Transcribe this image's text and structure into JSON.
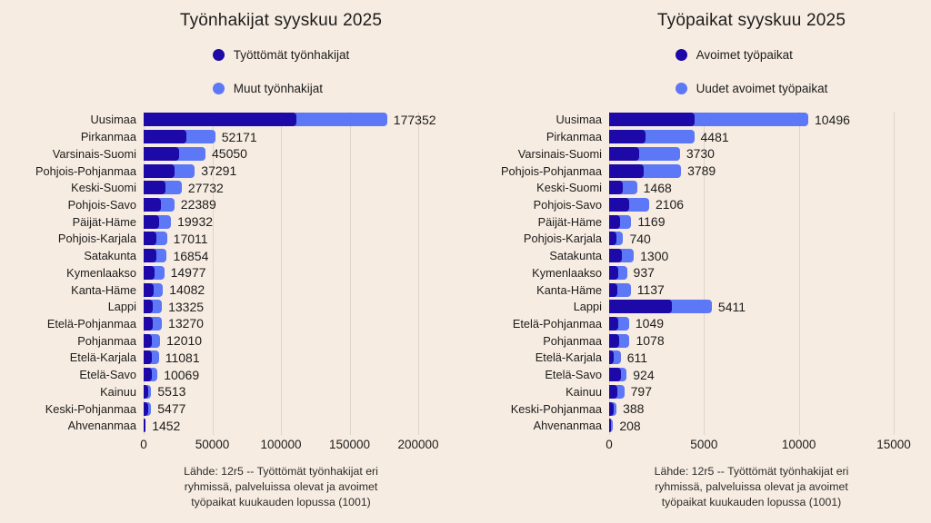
{
  "colors": {
    "bg": "#f7ece1",
    "text": "#1c1c1c",
    "grid": "#ddd5ca",
    "note": "#2b2b2b",
    "dark_blue": "#1d08a8",
    "light_blue": "#5c78f6"
  },
  "source_note": [
    "Lähde: 12r5 -- Työttömät työnhakijat eri",
    "ryhmissä, palveluissa olevat ja avoimet",
    "työpaikat kuukauden lopussa (1001)"
  ],
  "chart_data": [
    {
      "type": "bar",
      "orientation": "horizontal",
      "stacked": true,
      "title": "Työnhakijat syyskuu 2025",
      "legend": [
        {
          "label": "Työttömät työnhakijat",
          "color": "#1d08a8"
        },
        {
          "label": "Muut työnhakijat",
          "color": "#5c78f6"
        }
      ],
      "legend_position": "top",
      "grid": "vertical",
      "axis": {
        "ticks": [
          0,
          50000,
          100000,
          150000,
          200000
        ],
        "range": [
          0,
          200000
        ]
      },
      "categories": [
        "Uusimaa",
        "Pirkanmaa",
        "Varsinais-Suomi",
        "Pohjois-Pohjanmaa",
        "Keski-Suomi",
        "Pohjois-Savo",
        "Päijät-Häme",
        "Pohjois-Karjala",
        "Satakunta",
        "Kymenlaakso",
        "Kanta-Häme",
        "Lappi",
        "Etelä-Pohjanmaa",
        "Pohjanmaa",
        "Etelä-Karjala",
        "Etelä-Savo",
        "Kainuu",
        "Keski-Pohjanmaa",
        "Ahvenanmaa"
      ],
      "totals": [
        177352,
        52171,
        45050,
        37291,
        27732,
        22389,
        19932,
        17011,
        16854,
        14977,
        14082,
        13325,
        13270,
        12010,
        11081,
        10069,
        5513,
        5477,
        1452
      ],
      "series": [
        {
          "name": "Työttömät työnhakijat",
          "color": "#1d08a8",
          "values": [
            111000,
            30900,
            26000,
            22700,
            16100,
            12600,
            11300,
            9300,
            9300,
            8100,
            7100,
            6600,
            6600,
            6000,
            6100,
            6000,
            3000,
            3000,
            700
          ]
        },
        {
          "name": "Muut työnhakijat",
          "color": "#5c78f6",
          "values": [
            66352,
            21271,
            19050,
            14591,
            11632,
            9789,
            8632,
            7711,
            7554,
            6877,
            6982,
            6725,
            6670,
            6010,
            4981,
            4069,
            2513,
            2477,
            752
          ]
        }
      ]
    },
    {
      "type": "bar",
      "orientation": "horizontal",
      "stacked": true,
      "title": "Työpaikat syyskuu 2025",
      "legend": [
        {
          "label": "Avoimet työpaikat",
          "color": "#1d08a8"
        },
        {
          "label": "Uudet avoimet työpaikat",
          "color": "#5c78f6"
        }
      ],
      "legend_position": "top",
      "grid": "vertical",
      "axis": {
        "ticks": [
          0,
          5000,
          10000,
          15000
        ],
        "range": [
          0,
          15000
        ]
      },
      "categories": [
        "Uusimaa",
        "Pirkanmaa",
        "Varsinais-Suomi",
        "Pohjois-Pohjanmaa",
        "Keski-Suomi",
        "Pohjois-Savo",
        "Päijät-Häme",
        "Pohjois-Karjala",
        "Satakunta",
        "Kymenlaakso",
        "Kanta-Häme",
        "Lappi",
        "Etelä-Pohjanmaa",
        "Pohjanmaa",
        "Etelä-Karjala",
        "Etelä-Savo",
        "Kainuu",
        "Keski-Pohjanmaa",
        "Ahvenanmaa"
      ],
      "totals": [
        10496,
        4481,
        3730,
        3789,
        1468,
        2106,
        1169,
        740,
        1300,
        937,
        1137,
        5411,
        1049,
        1078,
        611,
        924,
        797,
        388,
        208
      ],
      "series": [
        {
          "name": "Avoimet työpaikat",
          "color": "#1d08a8",
          "values": [
            4500,
            1900,
            1600,
            1840,
            720,
            1040,
            590,
            370,
            690,
            470,
            420,
            3300,
            470,
            510,
            250,
            610,
            430,
            240,
            100
          ]
        },
        {
          "name": "Uudet avoimet työpaikat",
          "color": "#5c78f6",
          "values": [
            5996,
            2581,
            2130,
            1949,
            748,
            1066,
            579,
            370,
            610,
            467,
            717,
            2111,
            579,
            568,
            361,
            314,
            367,
            148,
            108
          ]
        }
      ]
    }
  ]
}
